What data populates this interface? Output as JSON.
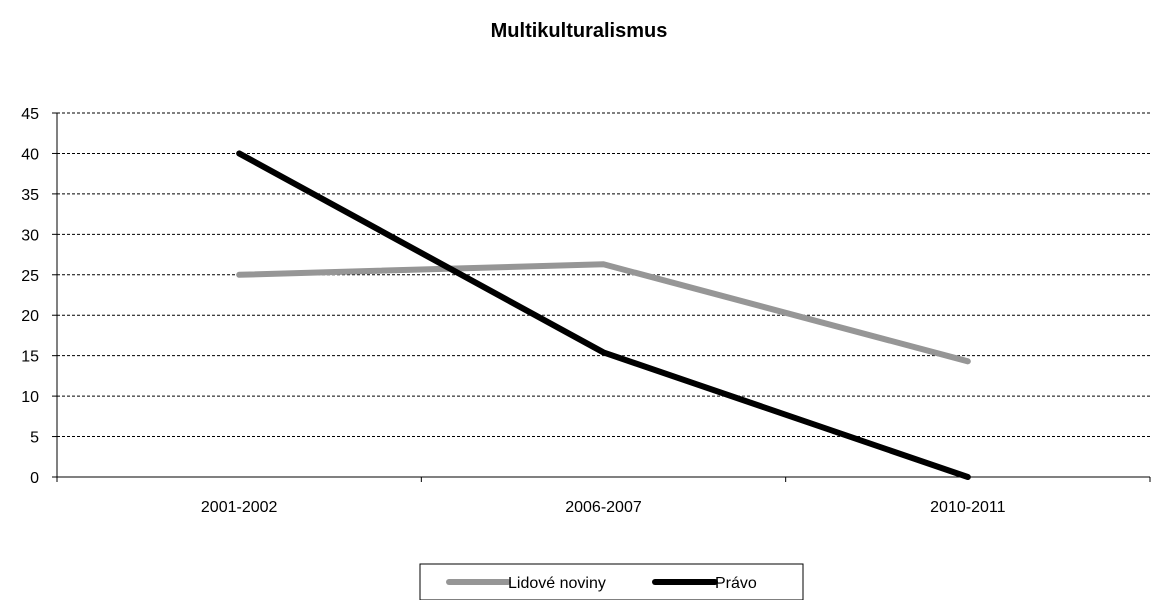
{
  "chart_data": {
    "type": "line",
    "title": "Multikulturalismus",
    "xlabel": "",
    "ylabel": "",
    "categories": [
      "2001-2002",
      "2006-2007",
      "2010-2011"
    ],
    "ylim": [
      0,
      45
    ],
    "yticks": [
      0,
      5,
      10,
      15,
      20,
      25,
      30,
      35,
      40,
      45
    ],
    "grid": true,
    "legend": "bottom",
    "series": [
      {
        "name": "Lidové noviny",
        "values": [
          25,
          26.3,
          14.3
        ],
        "color": "#969696"
      },
      {
        "name": "Právo",
        "values": [
          40,
          15.4,
          0
        ],
        "color": "#000000"
      }
    ]
  }
}
